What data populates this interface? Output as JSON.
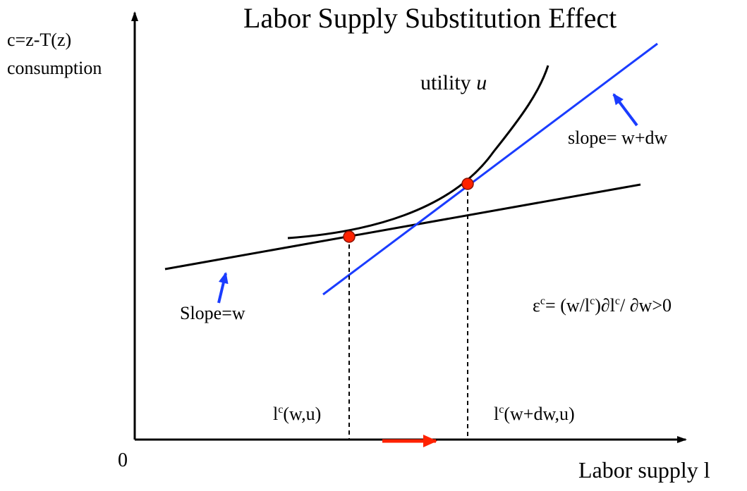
{
  "title": "Labor Supply Substitution Effect",
  "y_axis": {
    "line1": "c=z-T(z)",
    "line2": "consumption"
  },
  "x_axis": {
    "label": "Labor supply l",
    "origin": "0"
  },
  "curve_label": {
    "text": "utility ",
    "symbol": "u"
  },
  "slope_labels": {
    "high": "slope= w+dw",
    "low": "Slope=w"
  },
  "elasticity": {
    "eps": "ε",
    "sup1": "c",
    "mid1": "= (w/l",
    "sup2": "c",
    "mid2": ")∂l",
    "sup3": "c",
    "tail": "/ ∂w>0"
  },
  "tangency_labels": {
    "low": {
      "base": "l",
      "sup": "c",
      "rest": "(w,u)"
    },
    "high": {
      "base": "l",
      "sup": "c",
      "rest": "(w+dw,u)"
    }
  },
  "colors": {
    "axis": "#000000",
    "indifference_curve": "#000000",
    "budget_line_w": "#000000",
    "budget_line_w_dw": "#1a3cff",
    "pointer_arrows": "#1a3cff",
    "tangency_points": "#ff2200",
    "shift_arrow": "#ff2200"
  }
}
